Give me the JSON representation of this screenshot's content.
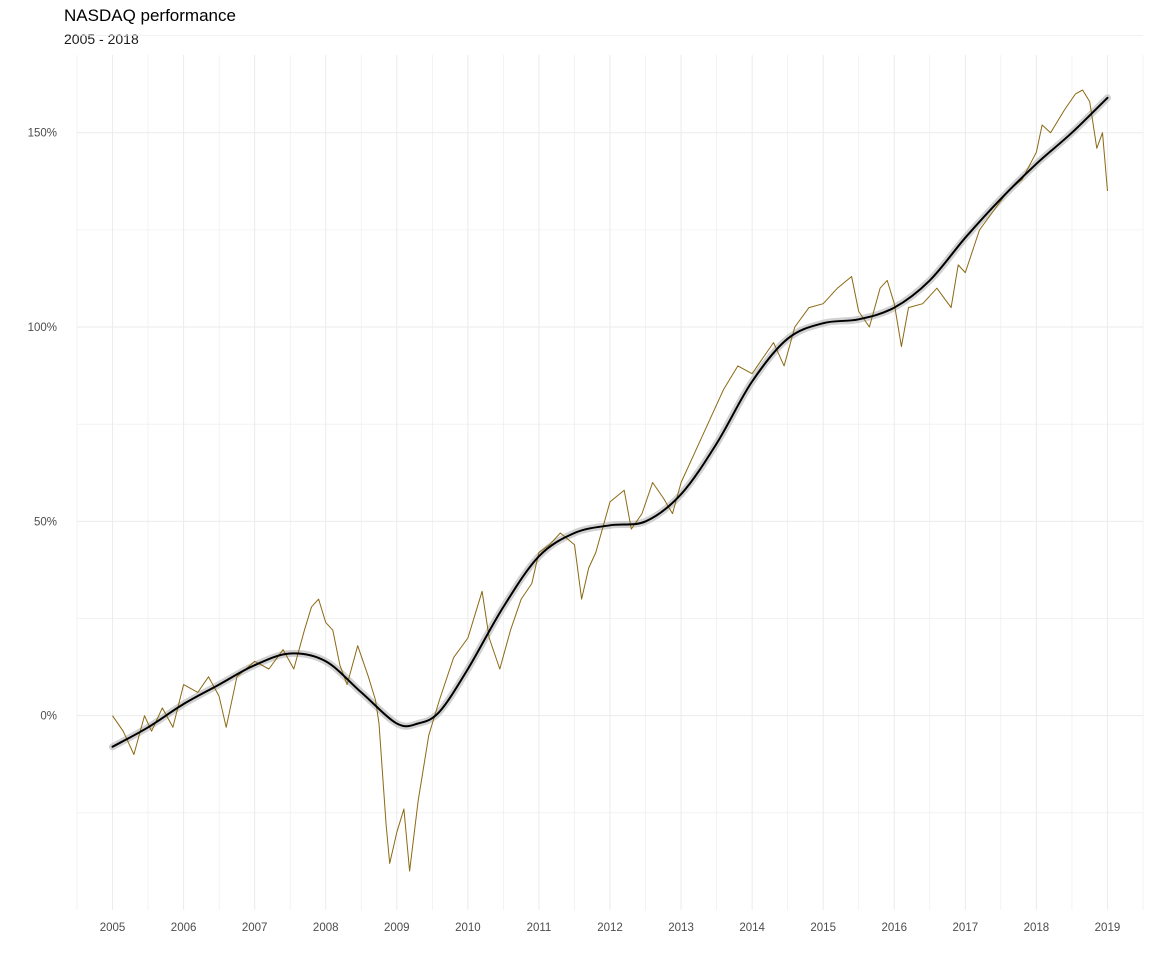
{
  "chart_data": {
    "type": "line",
    "title": "NASDAQ performance",
    "subtitle": "2005 - 2018",
    "xlabel": "",
    "ylabel": "",
    "xlim": [
      2004.5,
      2019.5
    ],
    "ylim": [
      -0.5,
      1.7
    ],
    "x_ticks": [
      2005,
      2006,
      2007,
      2008,
      2009,
      2010,
      2011,
      2012,
      2013,
      2014,
      2015,
      2016,
      2017,
      2018,
      2019
    ],
    "x_tick_labels": [
      "2005",
      "2006",
      "2007",
      "2008",
      "2009",
      "2010",
      "2011",
      "2012",
      "2013",
      "2014",
      "2015",
      "2016",
      "2017",
      "2018",
      "2019"
    ],
    "y_ticks": [
      0,
      0.5,
      1.0,
      1.5
    ],
    "y_tick_labels": [
      "0%",
      "50%",
      "100%",
      "150%"
    ],
    "grid": true,
    "colors": {
      "price": "#8B6914",
      "trend": "#000000",
      "band": "#bdbdbd",
      "grid": "#ebebeb"
    },
    "series": [
      {
        "role": "price",
        "x": [
          2005.0,
          2005.15,
          2005.3,
          2005.45,
          2005.55,
          2005.7,
          2005.85,
          2006.0,
          2006.2,
          2006.35,
          2006.5,
          2006.6,
          2006.75,
          2007.0,
          2007.2,
          2007.4,
          2007.55,
          2007.7,
          2007.8,
          2007.9,
          2008.0,
          2008.1,
          2008.2,
          2008.3,
          2008.45,
          2008.6,
          2008.7,
          2008.75,
          2008.85,
          2008.9,
          2009.0,
          2009.1,
          2009.18,
          2009.3,
          2009.45,
          2009.6,
          2009.8,
          2010.0,
          2010.2,
          2010.3,
          2010.45,
          2010.6,
          2010.75,
          2010.9,
          2011.0,
          2011.15,
          2011.3,
          2011.5,
          2011.6,
          2011.7,
          2011.8,
          2012.0,
          2012.2,
          2012.3,
          2012.45,
          2012.6,
          2012.75,
          2012.88,
          2013.0,
          2013.2,
          2013.4,
          2013.6,
          2013.8,
          2014.0,
          2014.15,
          2014.3,
          2014.45,
          2014.6,
          2014.8,
          2015.0,
          2015.2,
          2015.4,
          2015.5,
          2015.65,
          2015.8,
          2015.9,
          2016.0,
          2016.1,
          2016.2,
          2016.4,
          2016.6,
          2016.8,
          2016.9,
          2017.0,
          2017.2,
          2017.4,
          2017.6,
          2017.8,
          2018.0,
          2018.08,
          2018.2,
          2018.4,
          2018.55,
          2018.65,
          2018.75,
          2018.85,
          2018.93,
          2019.0
        ],
        "y": [
          0.0,
          -0.04,
          -0.1,
          0.0,
          -0.04,
          0.02,
          -0.03,
          0.08,
          0.06,
          0.1,
          0.05,
          -0.03,
          0.1,
          0.14,
          0.12,
          0.17,
          0.12,
          0.22,
          0.28,
          0.3,
          0.24,
          0.22,
          0.13,
          0.08,
          0.18,
          0.1,
          0.04,
          -0.02,
          -0.28,
          -0.38,
          -0.3,
          -0.24,
          -0.4,
          -0.22,
          -0.05,
          0.04,
          0.15,
          0.2,
          0.32,
          0.2,
          0.12,
          0.22,
          0.3,
          0.34,
          0.42,
          0.44,
          0.47,
          0.44,
          0.3,
          0.38,
          0.42,
          0.55,
          0.58,
          0.48,
          0.52,
          0.6,
          0.56,
          0.52,
          0.6,
          0.68,
          0.76,
          0.84,
          0.9,
          0.88,
          0.92,
          0.96,
          0.9,
          1.0,
          1.05,
          1.06,
          1.1,
          1.13,
          1.04,
          1.0,
          1.1,
          1.12,
          1.06,
          0.95,
          1.05,
          1.06,
          1.1,
          1.05,
          1.16,
          1.14,
          1.25,
          1.3,
          1.35,
          1.38,
          1.45,
          1.52,
          1.5,
          1.56,
          1.6,
          1.61,
          1.58,
          1.46,
          1.5,
          1.35
        ]
      },
      {
        "role": "trend",
        "x": [
          2005.0,
          2005.5,
          2006.0,
          2006.5,
          2007.0,
          2007.5,
          2008.0,
          2008.5,
          2009.0,
          2009.3,
          2009.6,
          2010.0,
          2010.5,
          2011.0,
          2011.5,
          2012.0,
          2012.5,
          2013.0,
          2013.5,
          2014.0,
          2014.5,
          2015.0,
          2015.5,
          2016.0,
          2016.5,
          2017.0,
          2017.5,
          2018.0,
          2018.5,
          2019.0
        ],
        "y": [
          -0.08,
          -0.03,
          0.03,
          0.08,
          0.13,
          0.16,
          0.14,
          0.06,
          -0.02,
          -0.02,
          0.01,
          0.12,
          0.28,
          0.41,
          0.47,
          0.49,
          0.5,
          0.57,
          0.7,
          0.86,
          0.97,
          1.01,
          1.02,
          1.05,
          1.12,
          1.23,
          1.33,
          1.42,
          1.5,
          1.59
        ]
      }
    ]
  }
}
